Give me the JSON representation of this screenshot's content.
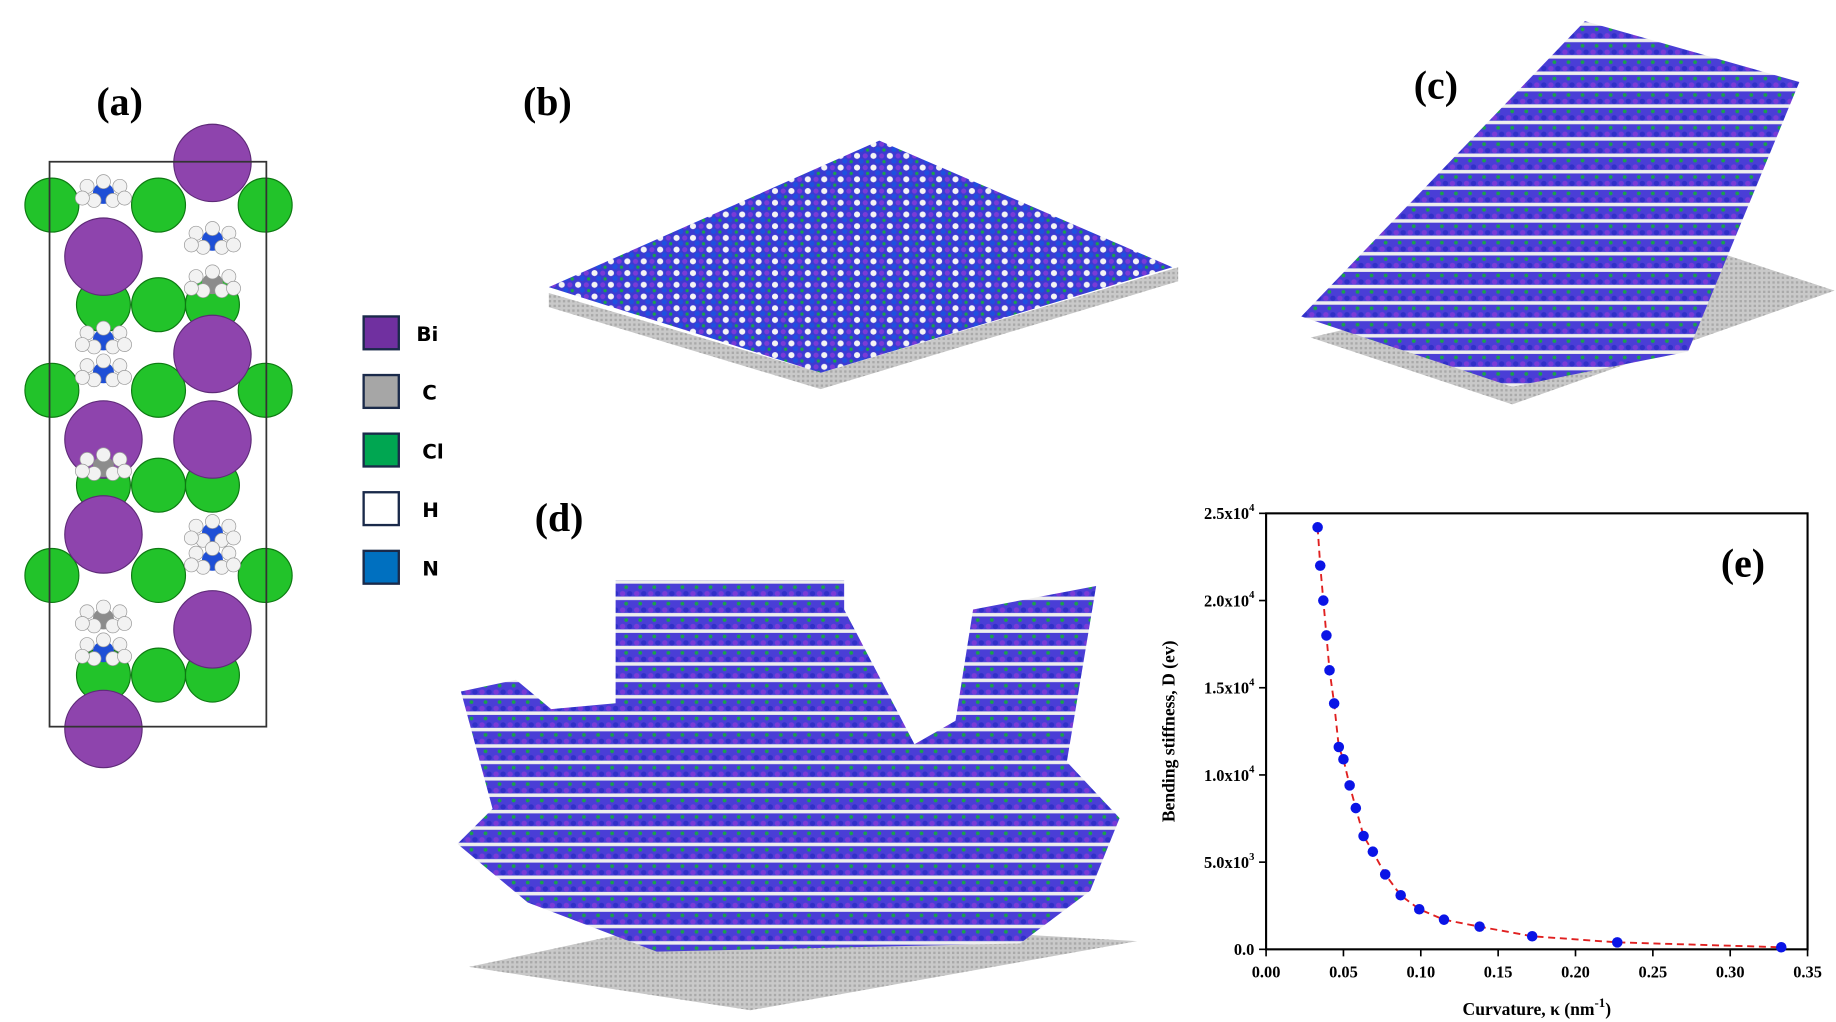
{
  "panels": {
    "a": {
      "label": "(a)"
    },
    "b": {
      "label": "(b)"
    },
    "c": {
      "label": "(c)"
    },
    "d": {
      "label": "(d)"
    },
    "e": {
      "label": "(e)"
    }
  },
  "legend": [
    {
      "name": "Bi",
      "color": "#7030a0"
    },
    {
      "name": "C",
      "color": "#a6a6a6"
    },
    {
      "name": "Cl",
      "color": "#00a651"
    },
    {
      "name": "H",
      "color": "#ffffff"
    },
    {
      "name": "N",
      "color": "#0070c0"
    }
  ],
  "colors": {
    "point": "#0a14e6",
    "fit": "#e02020",
    "sheet_blue": "#3a3ad0",
    "sheet_purple": "#7a3bd6",
    "substrate": "#c8c8c8"
  },
  "chart_data": {
    "type": "scatter",
    "title": "",
    "xlabel": "Curvature, κ (nm",
    "xlabel_sup": "-1",
    "xlabel_end": ")",
    "ylabel": "Bending stiffness, D (ev)",
    "xlim": [
      0,
      0.35
    ],
    "ylim": [
      0,
      25000
    ],
    "grid": false,
    "x_ticks": [
      "0.00",
      "0.05",
      "0.10",
      "0.15",
      "0.20",
      "0.25",
      "0.30",
      "0.35"
    ],
    "x_tick_values": [
      0,
      0.05,
      0.1,
      0.15,
      0.2,
      0.25,
      0.3,
      0.35
    ],
    "y_ticks": [
      {
        "base": "0.0",
        "exp": ""
      },
      {
        "base": "5.0x10",
        "exp": "3"
      },
      {
        "base": "1.0x10",
        "exp": "4"
      },
      {
        "base": "1.5x10",
        "exp": "4"
      },
      {
        "base": "2.0x10",
        "exp": "4"
      },
      {
        "base": "2.5x10",
        "exp": "4"
      }
    ],
    "y_tick_values": [
      0,
      5000,
      10000,
      15000,
      20000,
      25000
    ],
    "series": [
      {
        "name": "Bending stiffness",
        "marker": "circle",
        "fit_line": "dashed",
        "x": [
          0.0333,
          0.035,
          0.037,
          0.039,
          0.041,
          0.044,
          0.047,
          0.05,
          0.054,
          0.058,
          0.063,
          0.069,
          0.077,
          0.087,
          0.099,
          0.115,
          0.138,
          0.172,
          0.227,
          0.333
        ],
        "y": [
          24200,
          22000,
          20000,
          18000,
          16000,
          14100,
          11600,
          10900,
          9400,
          8100,
          6500,
          5600,
          4300,
          3100,
          2300,
          1700,
          1300,
          750,
          400,
          120
        ]
      }
    ]
  }
}
